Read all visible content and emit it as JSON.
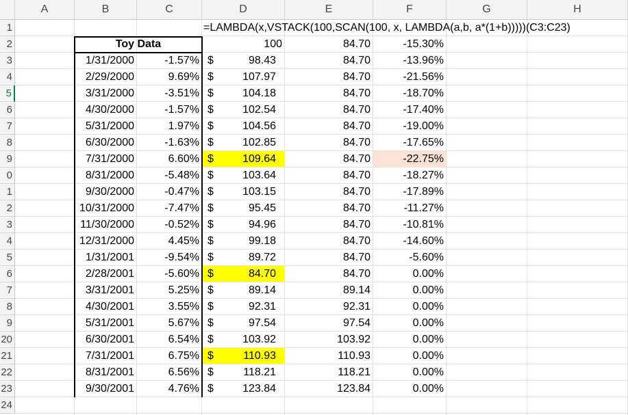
{
  "columns": [
    "A",
    "B",
    "C",
    "D",
    "E",
    "F",
    "G",
    "H"
  ],
  "rows": [
    "1",
    "2",
    "3",
    "4",
    "5",
    "6",
    "7",
    "8",
    "9",
    "0",
    "1",
    "2",
    "3",
    "4",
    "5",
    "6",
    "7",
    "8",
    "9",
    "20",
    "21",
    "22",
    "23",
    "24"
  ],
  "active_row_index": 4,
  "formula_text": "=LAMBDA(x,VSTACK(100,SCAN(100, x, LAMBDA(a,b, a*(1+b)))))(C3:C23)",
  "header": {
    "title": "Toy Data",
    "d_start": "100",
    "e_start": "84.70",
    "f_start": "-15.30%"
  },
  "currency_symbol": "$",
  "highlight_colors": {
    "yellow": "#ffff00",
    "peach": "#fbe2d5"
  },
  "table": [
    {
      "date": "1/31/2000",
      "ret": "-1.57%",
      "d": "98.43",
      "e": "84.70",
      "f": "-13.96%",
      "hl_d": false,
      "hl_f": false
    },
    {
      "date": "2/29/2000",
      "ret": "9.69%",
      "d": "107.97",
      "e": "84.70",
      "f": "-21.56%",
      "hl_d": false,
      "hl_f": false
    },
    {
      "date": "3/31/2000",
      "ret": "-3.51%",
      "d": "104.18",
      "e": "84.70",
      "f": "-18.70%",
      "hl_d": false,
      "hl_f": false
    },
    {
      "date": "4/30/2000",
      "ret": "-1.57%",
      "d": "102.54",
      "e": "84.70",
      "f": "-17.40%",
      "hl_d": false,
      "hl_f": false
    },
    {
      "date": "5/31/2000",
      "ret": "1.97%",
      "d": "104.56",
      "e": "84.70",
      "f": "-19.00%",
      "hl_d": false,
      "hl_f": false
    },
    {
      "date": "6/30/2000",
      "ret": "-1.63%",
      "d": "102.85",
      "e": "84.70",
      "f": "-17.65%",
      "hl_d": false,
      "hl_f": false
    },
    {
      "date": "7/31/2000",
      "ret": "6.60%",
      "d": "109.64",
      "e": "84.70",
      "f": "-22.75%",
      "hl_d": true,
      "hl_f": true
    },
    {
      "date": "8/31/2000",
      "ret": "-5.48%",
      "d": "103.64",
      "e": "84.70",
      "f": "-18.27%",
      "hl_d": false,
      "hl_f": false
    },
    {
      "date": "9/30/2000",
      "ret": "-0.47%",
      "d": "103.15",
      "e": "84.70",
      "f": "-17.89%",
      "hl_d": false,
      "hl_f": false
    },
    {
      "date": "10/31/2000",
      "ret": "-7.47%",
      "d": "95.45",
      "e": "84.70",
      "f": "-11.27%",
      "hl_d": false,
      "hl_f": false
    },
    {
      "date": "11/30/2000",
      "ret": "-0.52%",
      "d": "94.96",
      "e": "84.70",
      "f": "-10.81%",
      "hl_d": false,
      "hl_f": false
    },
    {
      "date": "12/31/2000",
      "ret": "4.45%",
      "d": "99.18",
      "e": "84.70",
      "f": "-14.60%",
      "hl_d": false,
      "hl_f": false
    },
    {
      "date": "1/31/2001",
      "ret": "-9.54%",
      "d": "89.72",
      "e": "84.70",
      "f": "-5.60%",
      "hl_d": false,
      "hl_f": false
    },
    {
      "date": "2/28/2001",
      "ret": "-5.60%",
      "d": "84.70",
      "e": "84.70",
      "f": "0.00%",
      "hl_d": true,
      "hl_f": false
    },
    {
      "date": "3/31/2001",
      "ret": "5.25%",
      "d": "89.14",
      "e": "89.14",
      "f": "0.00%",
      "hl_d": false,
      "hl_f": false
    },
    {
      "date": "4/30/2001",
      "ret": "3.55%",
      "d": "92.31",
      "e": "92.31",
      "f": "0.00%",
      "hl_d": false,
      "hl_f": false
    },
    {
      "date": "5/31/2001",
      "ret": "5.67%",
      "d": "97.54",
      "e": "97.54",
      "f": "0.00%",
      "hl_d": false,
      "hl_f": false
    },
    {
      "date": "6/30/2001",
      "ret": "6.54%",
      "d": "103.92",
      "e": "103.92",
      "f": "0.00%",
      "hl_d": false,
      "hl_f": false
    },
    {
      "date": "7/31/2001",
      "ret": "6.75%",
      "d": "110.93",
      "e": "110.93",
      "f": "0.00%",
      "hl_d": true,
      "hl_f": false
    },
    {
      "date": "8/31/2001",
      "ret": "6.56%",
      "d": "118.21",
      "e": "118.21",
      "f": "0.00%",
      "hl_d": false,
      "hl_f": false
    },
    {
      "date": "9/30/2001",
      "ret": "4.76%",
      "d": "123.84",
      "e": "123.84",
      "f": "0.00%",
      "hl_d": false,
      "hl_f": false
    }
  ]
}
